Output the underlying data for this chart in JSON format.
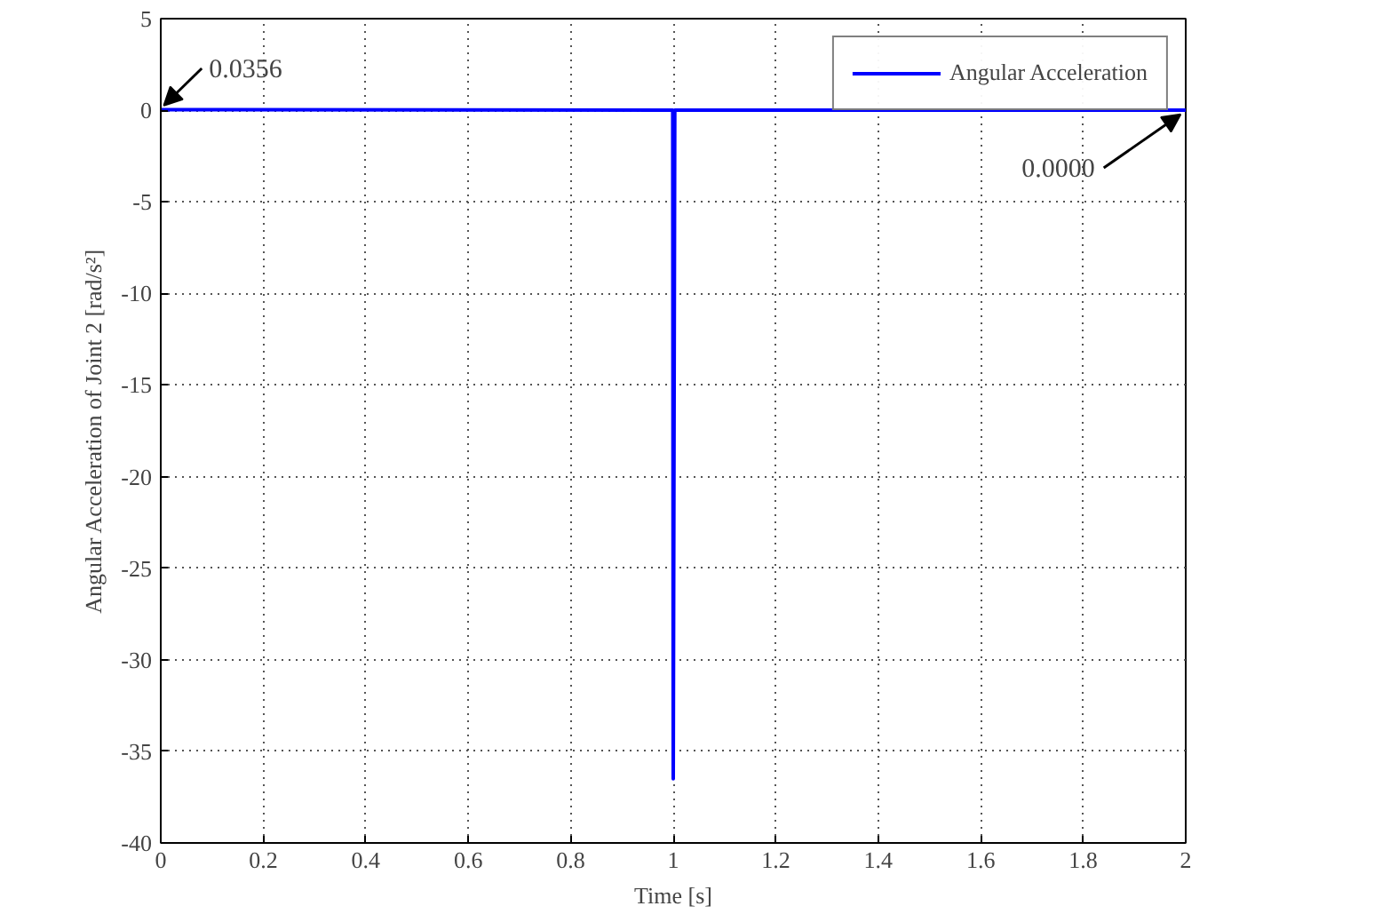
{
  "chart_data": {
    "type": "line",
    "xlabel": "Time [s]",
    "ylabel": "Angular Acceleration of Joint 2 [rad/s²]",
    "series": [
      {
        "name": "Angular Acceleration",
        "color": "#0000ff",
        "x": [
          0,
          0.999,
          1.0,
          1.003,
          2
        ],
        "values": [
          0.0356,
          0,
          -36.5,
          0,
          0
        ]
      }
    ],
    "xlim": [
      0,
      2
    ],
    "ylim": [
      -40,
      5
    ],
    "xticks": [
      0,
      0.2,
      0.4,
      0.6,
      0.8,
      1,
      1.2,
      1.4,
      1.6,
      1.8,
      2
    ],
    "yticks": [
      -40,
      -35,
      -30,
      -25,
      -20,
      -15,
      -10,
      -5,
      0,
      5
    ],
    "grid": true,
    "legend": "top right",
    "annotations": [
      {
        "text": "0.0356",
        "x": 0,
        "y": 0.0356
      },
      {
        "text": "0.0000",
        "x": 2,
        "y": 0
      }
    ]
  }
}
